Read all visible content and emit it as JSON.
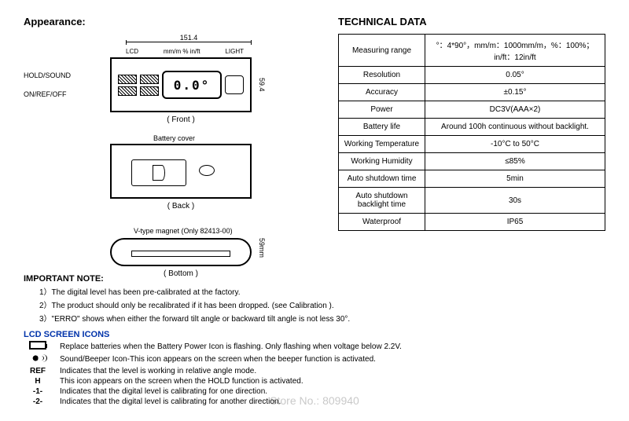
{
  "appearance": {
    "title": "Appearance:",
    "width_label": "151.4",
    "height_label": "59.4",
    "left_labels": {
      "hold_sound": "HOLD/SOUND",
      "on_ref_off": "ON/REF/OFF"
    },
    "top_labels": {
      "lcd": "LCD",
      "units": "mm/m % in/ft",
      "light": "LIGHT"
    },
    "lcd_display": "0.0°",
    "front_label": "( Front )",
    "battery_cover": "Battery cover",
    "back_label": "( Back )",
    "vtype_magnet": "V-type magnet (Only 82413-00)",
    "bottom_height": "59mm",
    "bottom_label": "( Bottom )"
  },
  "technical": {
    "title": "TECHNICAL DATA",
    "rows": [
      {
        "key": "Measuring range",
        "val": "°：4*90°，mm/m：1000mm/m，%：100%；in/ft：12in/ft"
      },
      {
        "key": "Resolution",
        "val": "0.05°"
      },
      {
        "key": "Accuracy",
        "val": "±0.15°"
      },
      {
        "key": "Power",
        "val": "DC3V(AAA×2)"
      },
      {
        "key": "Battery life",
        "val": "Around 100h continuous without backlight."
      },
      {
        "key": "Working Temperature",
        "val": "-10°C to 50°C"
      },
      {
        "key": "Working Humidity",
        "val": "≤85%"
      },
      {
        "key": "Auto shutdown time",
        "val": "5min"
      },
      {
        "key": "Auto shutdown backlight time",
        "val": "30s"
      },
      {
        "key": "Waterproof",
        "val": "IP65"
      }
    ]
  },
  "notes": {
    "title": "IMPORTANT NOTE:",
    "items": [
      "1）The digital level has been pre-calibrated at the factory.",
      "2）The product should only be recalibrated if it has been dropped. (see Calibration ).",
      "3）\"ERRO\" shows when either the forward tilt angle or backward tilt angle is not less 30°."
    ]
  },
  "lcd_icons": {
    "title": "LCD SCREEN ICONS",
    "rows": [
      {
        "icon": "battery",
        "desc": "Replace batteries when the Battery Power Icon is flashing. Only flashing when voltage below 2.2V."
      },
      {
        "icon": "sound",
        "desc": "Sound/Beeper Icon-This icon appears on the screen when the beeper function is activated."
      },
      {
        "icon": "REF",
        "desc": "Indicates that the level is working in relative angle mode."
      },
      {
        "icon": "H",
        "desc": "This icon appears on the screen when the HOLD function is activated."
      },
      {
        "icon": "-1-",
        "desc": "Indicates that the digital level is calibrating for one direction."
      },
      {
        "icon": "-2-",
        "desc": "Indicates that the digital level is calibrating for another direction."
      }
    ]
  },
  "watermark": "Store No.: 809940"
}
